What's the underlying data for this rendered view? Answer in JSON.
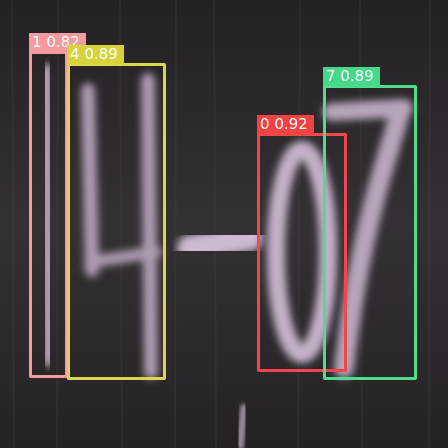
{
  "detections": [
    {
      "class_id": "1",
      "score": "0.82",
      "color": "#f59a9f",
      "label_color": "#f59a9f"
    },
    {
      "class_id": "4",
      "score": "0.89",
      "color": "#d9d74a",
      "label_color": "#d6d33b"
    },
    {
      "class_id": "0",
      "score": "0.92",
      "color": "#f04848",
      "label_color": "#f04444"
    },
    {
      "class_id": "7",
      "score": "0.89",
      "color": "#4fdc8e",
      "label_color": "#46d98a"
    }
  ]
}
